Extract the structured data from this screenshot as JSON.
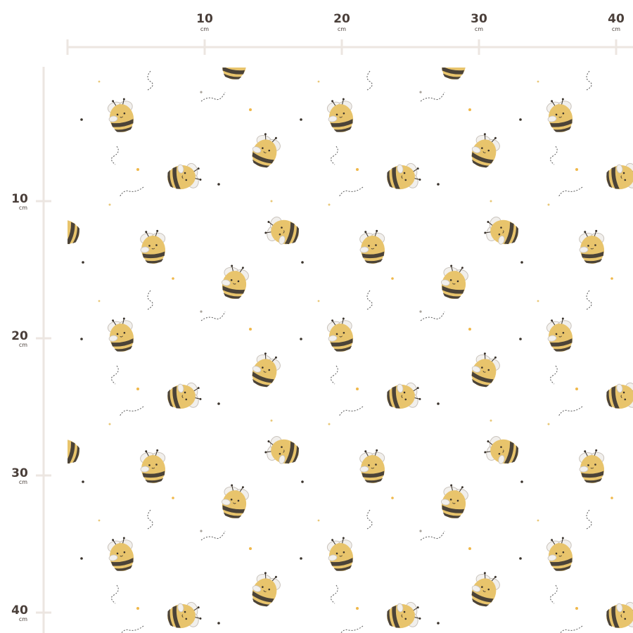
{
  "ruler_top": {
    "labels": [
      "10",
      "20",
      "30",
      "40"
    ],
    "unit": "cm"
  },
  "ruler_left": {
    "labels": [
      "10",
      "20",
      "30",
      "40"
    ],
    "unit": "cm"
  }
}
